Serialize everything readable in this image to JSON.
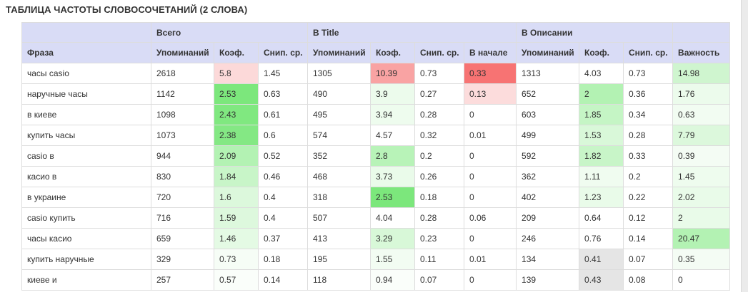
{
  "title": "ТАБЛИЦА ЧАСТОТЫ СЛОВОСОЧЕТАНИЙ (2 СЛОВА)",
  "groups": [
    "",
    "Всего",
    "В Title",
    "В Описании",
    ""
  ],
  "columns": [
    "Фраза",
    "Упоминаний",
    "Коэф.",
    "Снип. ср.",
    "Упоминаний",
    "Коэф.",
    "Снип. ср.",
    "В начале",
    "Упоминаний",
    "Коэф.",
    "Снип. ср.",
    "Важность"
  ],
  "rows": [
    {
      "cells": [
        "часы casio",
        "2618",
        "5.8",
        "1.45",
        "1305",
        "10.39",
        "0.73",
        "0.33",
        "1313",
        "4.03",
        "0.73",
        "14.98"
      ],
      "colors": {
        "2": "#fcd9d9",
        "5": "#f9a3a3",
        "7": "#f77373",
        "11": "#cff5cf"
      }
    },
    {
      "cells": [
        "наручные часы",
        "1142",
        "2.53",
        "0.63",
        "490",
        "3.9",
        "0.27",
        "0.13",
        "652",
        "2",
        "0.36",
        "1.76"
      ],
      "colors": {
        "2": "#7ce77c",
        "5": "#ecfbec",
        "7": "#fcdcdc",
        "9": "#b3f2b3",
        "11": "#ecfbec"
      }
    },
    {
      "cells": [
        "в киеве",
        "1098",
        "2.43",
        "0.61",
        "495",
        "3.94",
        "0.28",
        "0",
        "603",
        "1.85",
        "0.34",
        "0.63"
      ],
      "colors": {
        "2": "#80e880",
        "5": "#eefcee",
        "9": "#c5f5c5",
        "11": "#f2fcf2"
      }
    },
    {
      "cells": [
        "купить часы",
        "1073",
        "2.38",
        "0.6",
        "574",
        "4.57",
        "0.32",
        "0.01",
        "499",
        "1.53",
        "0.28",
        "7.79"
      ],
      "colors": {
        "2": "#84e884",
        "9": "#d9f8d9",
        "11": "#dcf8dc"
      }
    },
    {
      "cells": [
        "casio в",
        "944",
        "2.09",
        "0.52",
        "352",
        "2.8",
        "0.2",
        "0",
        "592",
        "1.82",
        "0.33",
        "0.39"
      ],
      "colors": {
        "2": "#b3f2b3",
        "5": "#b8f3b8",
        "9": "#c8f5c8",
        "11": "#f4fcf4"
      }
    },
    {
      "cells": [
        "касио в",
        "830",
        "1.84",
        "0.46",
        "468",
        "3.73",
        "0.26",
        "0",
        "362",
        "1.11",
        "0.2",
        "1.45"
      ],
      "colors": {
        "2": "#c8f5c8",
        "5": "#eafbea",
        "9": "#f0fcf0",
        "11": "#eefcee"
      }
    },
    {
      "cells": [
        "в украине",
        "720",
        "1.6",
        "0.4",
        "318",
        "2.53",
        "0.18",
        "0",
        "402",
        "1.23",
        "0.22",
        "2.02"
      ],
      "colors": {
        "2": "#dcf8dc",
        "5": "#7ce77c",
        "9": "#e9fbe9",
        "11": "#e9fbe9"
      }
    },
    {
      "cells": [
        "casio купить",
        "716",
        "1.59",
        "0.4",
        "507",
        "4.04",
        "0.28",
        "0.06",
        "209",
        "0.64",
        "0.12",
        "2"
      ],
      "colors": {
        "2": "#ddf8dd",
        "11": "#e9fbe9"
      }
    },
    {
      "cells": [
        "часы касио",
        "659",
        "1.46",
        "0.37",
        "413",
        "3.29",
        "0.23",
        "0",
        "246",
        "0.76",
        "0.14",
        "20.47"
      ],
      "colors": {
        "2": "#e4faе4",
        "5": "#d8f8d8",
        "11": "#b3f2b3"
      }
    },
    {
      "cells": [
        "купить наручные",
        "329",
        "0.73",
        "0.18",
        "195",
        "1.55",
        "0.11",
        "0.01",
        "134",
        "0.41",
        "0.07",
        "0.35"
      ],
      "colors": {
        "2": "#f6fdf6",
        "5": "#f2fcf2",
        "9": "#e5e5e5",
        "11": "#f4fcf4"
      }
    },
    {
      "cells": [
        "киеве и",
        "257",
        "0.57",
        "0.14",
        "118",
        "0.94",
        "0.07",
        "0",
        "139",
        "0.43",
        "0.08",
        "0"
      ],
      "colors": {
        "2": "#fafefa",
        "5": "#fafefa",
        "9": "#e5e5e5",
        "11": "#ffffff"
      }
    }
  ]
}
